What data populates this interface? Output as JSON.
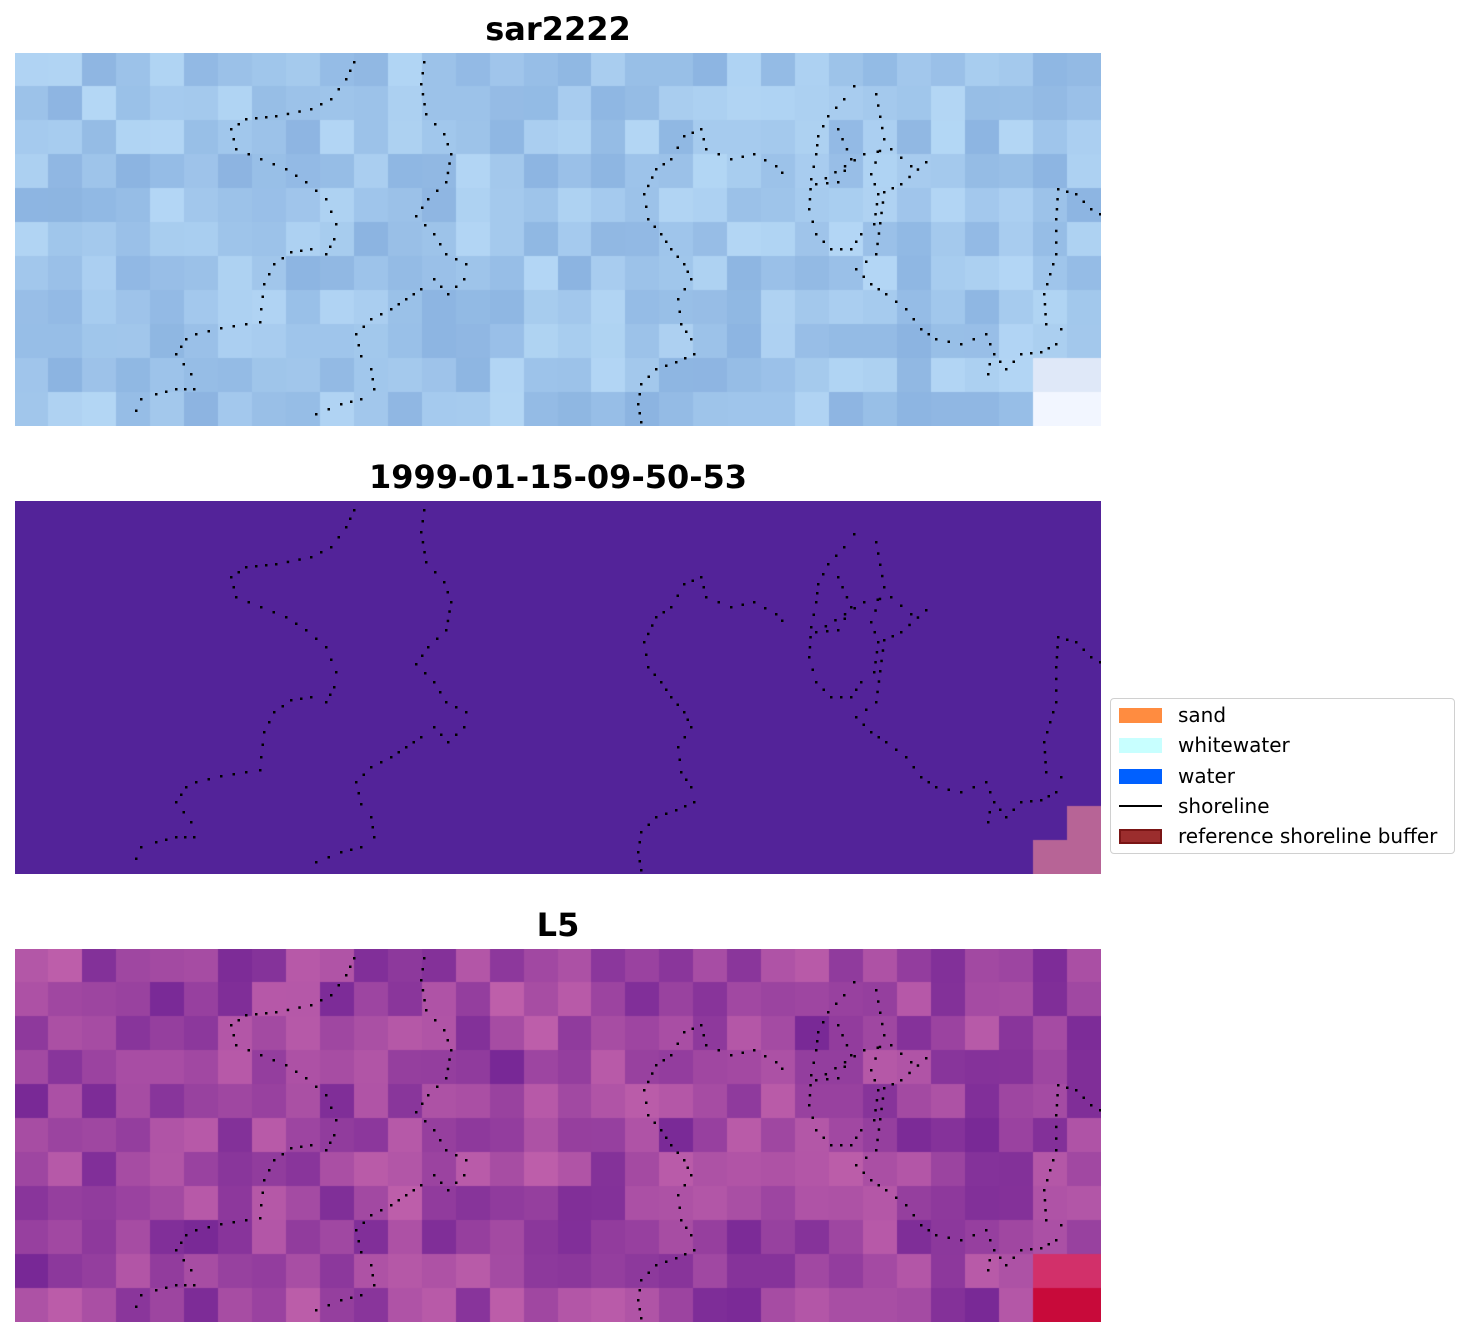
{
  "panels": [
    {
      "title": "sar2222",
      "style": "rgb"
    },
    {
      "title": "1999-01-15-09-50-53",
      "style": "classified"
    },
    {
      "title": "L5",
      "style": "ndwi"
    }
  ],
  "legend": {
    "items": [
      {
        "label": "sand",
        "color": "#ff8c40",
        "kind": "patch"
      },
      {
        "label": "whitewater",
        "color": "#c8ffff",
        "kind": "patch"
      },
      {
        "label": "water",
        "color": "#0060ff",
        "kind": "patch"
      },
      {
        "label": "shoreline",
        "color": "#000000",
        "kind": "line"
      },
      {
        "label": "reference shoreline buffer",
        "color": "#9b2d2d",
        "edge": "#7a1515",
        "kind": "patch"
      }
    ]
  },
  "colors": {
    "classified_background": "#532399",
    "classified_corner": "#b76496",
    "shoreline_dots": "#000000"
  }
}
